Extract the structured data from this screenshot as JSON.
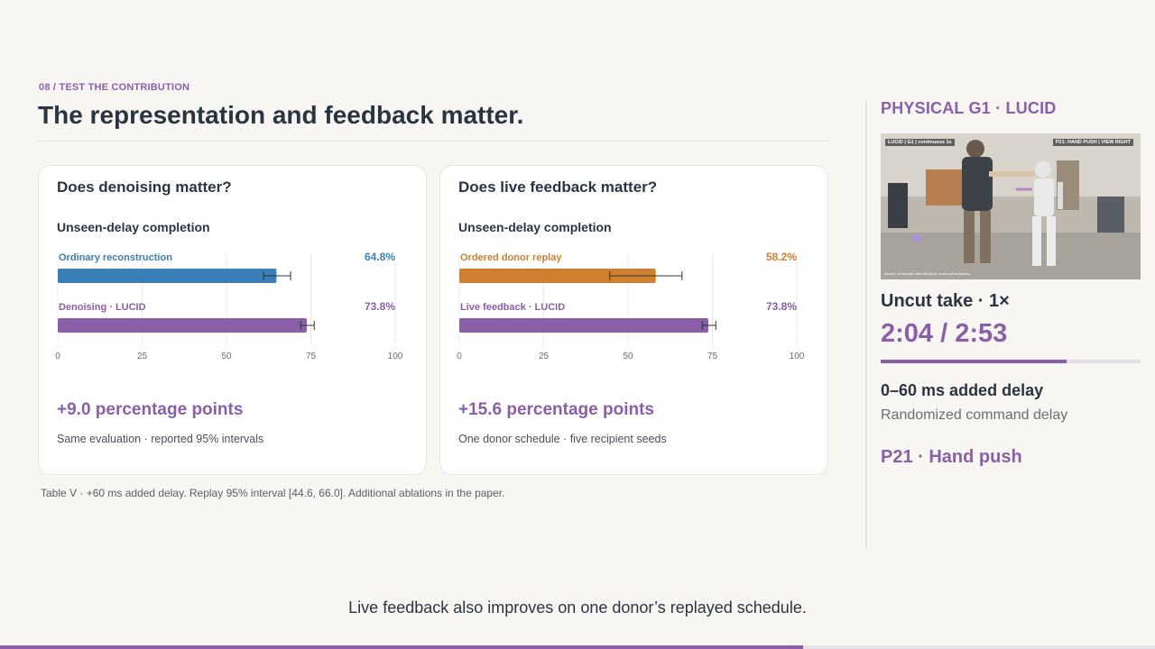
{
  "slide": {
    "kicker": "08 / TEST THE CONTRIBUTION",
    "headline": "The representation and feedback matter.",
    "footnote": "Table V · +60 ms added delay. Replay 95% interval [44.6, 66.0]. Additional ablations in the paper.",
    "subtitle": "Live feedback also improves on one donor’s replayed schedule.",
    "deck_progress": 0.695
  },
  "colors": {
    "accent": "#8a5fa8",
    "blue": "#3a7fb5",
    "orange": "#cf7f2e",
    "purple": "#8a5fa8"
  },
  "cards": [
    {
      "title": "Does denoising matter?",
      "subtitle": "Unseen-delay completion",
      "delta": "+9.0 percentage points",
      "note": "Same evaluation · reported 95% intervals"
    },
    {
      "title": "Does live feedback matter?",
      "subtitle": "Unseen-delay completion",
      "delta": "+15.6 percentage points",
      "note": "One donor schedule · five recipient seeds"
    }
  ],
  "chart_data": [
    {
      "type": "bar",
      "orientation": "horizontal",
      "title": "Unseen-delay completion",
      "xlim": [
        0,
        100
      ],
      "ticks": [
        "0",
        "25",
        "50",
        "75",
        "100"
      ],
      "grid": true,
      "bars": [
        {
          "label": "Ordinary reconstruction",
          "value": 64.8,
          "display": "64.8%",
          "ci": [
            61.0,
            69.0
          ],
          "color": "#3a7fb5"
        },
        {
          "label": "Denoising · LUCID",
          "value": 73.8,
          "display": "73.8%",
          "ci": [
            72.0,
            76.0
          ],
          "color": "#8a5fa8"
        }
      ]
    },
    {
      "type": "bar",
      "orientation": "horizontal",
      "title": "Unseen-delay completion",
      "xlim": [
        0,
        100
      ],
      "ticks": [
        "0",
        "25",
        "50",
        "75",
        "100"
      ],
      "grid": true,
      "bars": [
        {
          "label": "Ordered donor replay",
          "value": 58.2,
          "display": "58.2%",
          "ci": [
            44.6,
            66.0
          ],
          "color": "#cf7f2e"
        },
        {
          "label": "Live feedback · LUCID",
          "value": 73.8,
          "display": "73.8%",
          "ci": [
            72.0,
            76.0
          ],
          "color": "#8a5fa8"
        }
      ]
    }
  ],
  "sidebar": {
    "title": "PHYSICAL G1 · LUCID",
    "video": {
      "overlay_left": "LUCID | G1 | continuous 1x",
      "overlay_right": "P21: HAND PUSH | VIEW RIGHT",
      "caption": "Arrows: schematic view direction; force not measured."
    },
    "take_label": "Uncut take · 1×",
    "timecode": "2:04 / 2:53",
    "playback_progress": 0.717,
    "delay_title": "0–60 ms added delay",
    "delay_sub": "Randomized command delay",
    "perturbation": "P21 · Hand push"
  }
}
